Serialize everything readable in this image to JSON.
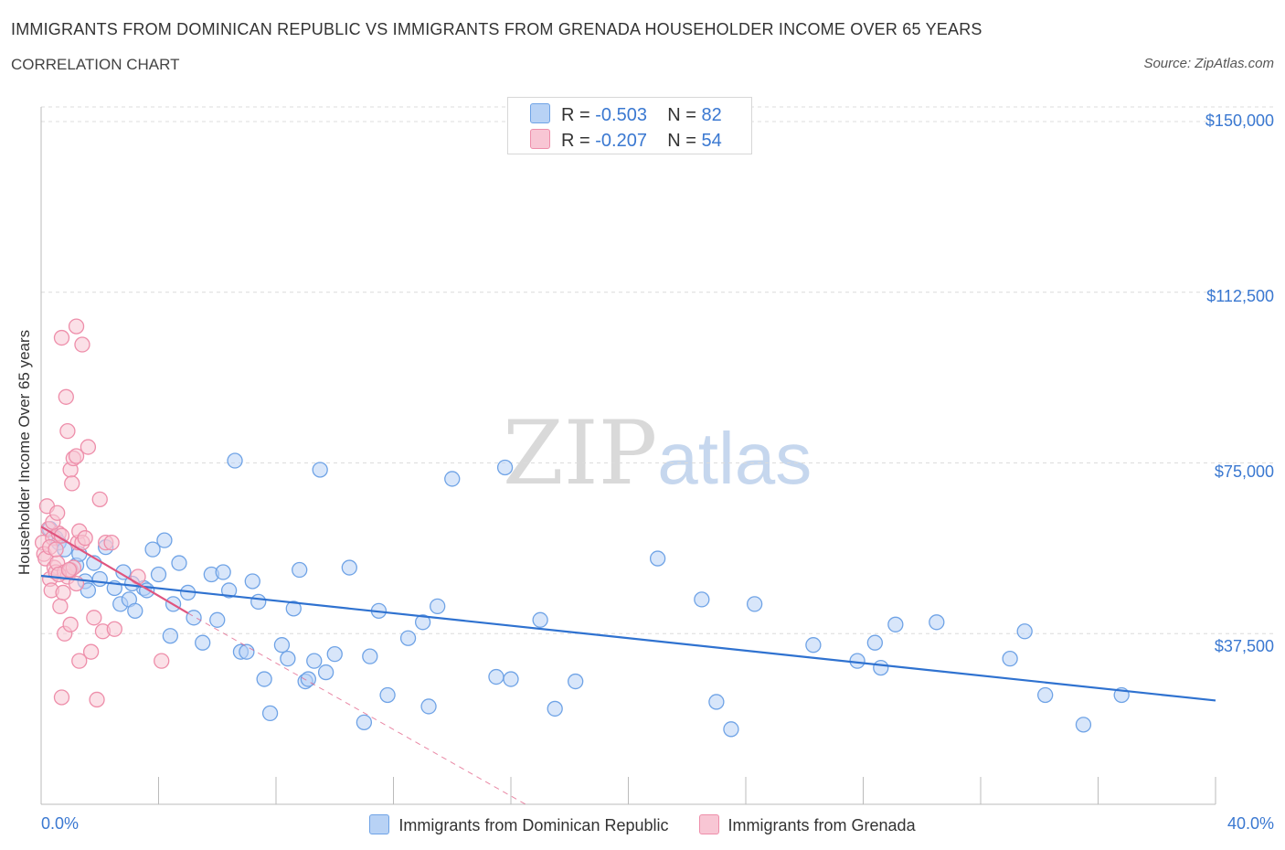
{
  "header": {
    "title": "IMMIGRANTS FROM DOMINICAN REPUBLIC VS IMMIGRANTS FROM GRENADA HOUSEHOLDER INCOME OVER 65 YEARS",
    "subtitle": "CORRELATION CHART",
    "source": "Source: ZipAtlas.com"
  },
  "watermark": {
    "zip": "ZIP",
    "atlas": "atlas"
  },
  "legend": {
    "series1": {
      "r_label": "R =",
      "r_value": "-0.503",
      "n_label": "N =",
      "n_value": "82"
    },
    "series2": {
      "r_label": "R =",
      "r_value": "-0.207",
      "n_label": "N =",
      "n_value": "54"
    }
  },
  "colors": {
    "blue": "#6fa3e6",
    "blue_fill": "#b8d2f5",
    "blue_line": "#2f72d0",
    "pink": "#ee8eaa",
    "pink_fill": "#f8c6d4",
    "pink_line": "#e0557f"
  },
  "chart_data": {
    "type": "scatter",
    "title": "IMMIGRANTS FROM DOMINICAN REPUBLIC VS IMMIGRANTS FROM GRENADA HOUSEHOLDER INCOME OVER 65 YEARS",
    "subtitle": "CORRELATION CHART",
    "ylabel": "Householder Income Over 65 years",
    "xlabel": "",
    "xlim": [
      0,
      40
    ],
    "ylim": [
      0,
      150000
    ],
    "x_tick_labels": [
      "0.0%",
      "40.0%"
    ],
    "y_ticks": [
      37500,
      75000,
      112500,
      150000
    ],
    "y_tick_labels": [
      "$37,500",
      "$75,000",
      "$112,500",
      "$150,000"
    ],
    "grid": true,
    "legend_position": "top-center",
    "series": [
      {
        "name": "Immigrants from Dominican Republic",
        "color": "#6fa3e6",
        "trend": {
          "x": [
            0,
            40
          ],
          "y": [
            50200,
            22800
          ]
        },
        "points": [
          [
            0.3,
            60500
          ],
          [
            0.5,
            58500
          ],
          [
            0.6,
            57500
          ],
          [
            0.8,
            56000
          ],
          [
            1.0,
            51500
          ],
          [
            1.2,
            52500
          ],
          [
            1.5,
            49000
          ],
          [
            1.6,
            47000
          ],
          [
            1.8,
            53000
          ],
          [
            2.0,
            49500
          ],
          [
            2.2,
            56500
          ],
          [
            2.5,
            47500
          ],
          [
            2.7,
            44000
          ],
          [
            2.8,
            51000
          ],
          [
            3.0,
            45000
          ],
          [
            3.2,
            42500
          ],
          [
            3.5,
            47500
          ],
          [
            3.6,
            47000
          ],
          [
            3.8,
            56000
          ],
          [
            4.0,
            50500
          ],
          [
            4.2,
            58000
          ],
          [
            4.4,
            37000
          ],
          [
            4.5,
            44000
          ],
          [
            4.7,
            53000
          ],
          [
            5.0,
            46500
          ],
          [
            5.2,
            41000
          ],
          [
            5.5,
            35500
          ],
          [
            5.8,
            50500
          ],
          [
            6.0,
            40500
          ],
          [
            6.2,
            51000
          ],
          [
            6.4,
            47000
          ],
          [
            6.6,
            75500
          ],
          [
            6.8,
            33500
          ],
          [
            7.0,
            33500
          ],
          [
            7.2,
            49000
          ],
          [
            7.4,
            44500
          ],
          [
            7.6,
            27500
          ],
          [
            7.8,
            20000
          ],
          [
            8.2,
            35000
          ],
          [
            8.4,
            32000
          ],
          [
            8.6,
            43000
          ],
          [
            8.8,
            51500
          ],
          [
            9.0,
            27000
          ],
          [
            9.1,
            27500
          ],
          [
            9.3,
            31500
          ],
          [
            9.5,
            73500
          ],
          [
            9.7,
            29000
          ],
          [
            10.0,
            33000
          ],
          [
            10.5,
            52000
          ],
          [
            11.0,
            18000
          ],
          [
            11.2,
            32500
          ],
          [
            11.5,
            42500
          ],
          [
            11.8,
            24000
          ],
          [
            12.5,
            36500
          ],
          [
            13.0,
            40000
          ],
          [
            13.2,
            21500
          ],
          [
            13.5,
            43500
          ],
          [
            14.0,
            71500
          ],
          [
            15.5,
            28000
          ],
          [
            15.8,
            74000
          ],
          [
            16.0,
            27500
          ],
          [
            17.0,
            40500
          ],
          [
            17.5,
            21000
          ],
          [
            18.2,
            27000
          ],
          [
            21.0,
            54000
          ],
          [
            22.5,
            45000
          ],
          [
            23.0,
            22500
          ],
          [
            23.5,
            16500
          ],
          [
            24.3,
            44000
          ],
          [
            26.3,
            35000
          ],
          [
            27.8,
            31500
          ],
          [
            28.4,
            35500
          ],
          [
            28.6,
            30000
          ],
          [
            29.1,
            39500
          ],
          [
            30.5,
            40000
          ],
          [
            33.0,
            32000
          ],
          [
            33.5,
            38000
          ],
          [
            34.2,
            24000
          ],
          [
            35.5,
            17500
          ],
          [
            36.8,
            24000
          ],
          [
            3.1,
            48500
          ],
          [
            1.3,
            55000
          ]
        ]
      },
      {
        "name": "Immigrants from Grenada",
        "color": "#ee8eaa",
        "trend": {
          "x": [
            0,
            5
          ],
          "y": [
            61000,
            42000
          ],
          "dashed_extension_to": [
            16.5,
            0
          ]
        },
        "points": [
          [
            0.05,
            57500
          ],
          [
            0.1,
            55000
          ],
          [
            0.15,
            54000
          ],
          [
            0.2,
            65500
          ],
          [
            0.25,
            60500
          ],
          [
            0.3,
            49500
          ],
          [
            0.35,
            47000
          ],
          [
            0.4,
            58500
          ],
          [
            0.45,
            52000
          ],
          [
            0.5,
            51000
          ],
          [
            0.55,
            53000
          ],
          [
            0.6,
            59500
          ],
          [
            0.65,
            43500
          ],
          [
            0.7,
            102500
          ],
          [
            0.8,
            37500
          ],
          [
            0.85,
            89500
          ],
          [
            0.9,
            82000
          ],
          [
            1.0,
            73500
          ],
          [
            1.05,
            70500
          ],
          [
            1.1,
            76000
          ],
          [
            1.2,
            76500
          ],
          [
            1.25,
            57500
          ],
          [
            1.3,
            60000
          ],
          [
            1.4,
            57500
          ],
          [
            1.5,
            58500
          ],
          [
            1.6,
            78500
          ],
          [
            2.0,
            67000
          ],
          [
            2.2,
            57500
          ],
          [
            2.4,
            57500
          ],
          [
            0.3,
            56500
          ],
          [
            0.5,
            56000
          ],
          [
            0.7,
            59000
          ],
          [
            0.8,
            51000
          ],
          [
            0.9,
            50000
          ],
          [
            1.0,
            51500
          ],
          [
            1.1,
            52000
          ],
          [
            1.2,
            48500
          ],
          [
            0.4,
            62000
          ],
          [
            0.6,
            50500
          ],
          [
            0.75,
            46500
          ],
          [
            1.3,
            31500
          ],
          [
            1.7,
            33500
          ],
          [
            1.8,
            41000
          ],
          [
            2.1,
            38000
          ],
          [
            2.5,
            38500
          ],
          [
            3.3,
            50000
          ],
          [
            4.1,
            31500
          ],
          [
            0.7,
            23500
          ],
          [
            1.9,
            23000
          ],
          [
            1.0,
            39500
          ],
          [
            0.95,
            51500
          ],
          [
            1.4,
            101000
          ],
          [
            1.2,
            105000
          ],
          [
            0.55,
            64000
          ]
        ]
      }
    ]
  },
  "axis_labels": {
    "x_left": "0.0%",
    "x_right": "40.0%"
  }
}
